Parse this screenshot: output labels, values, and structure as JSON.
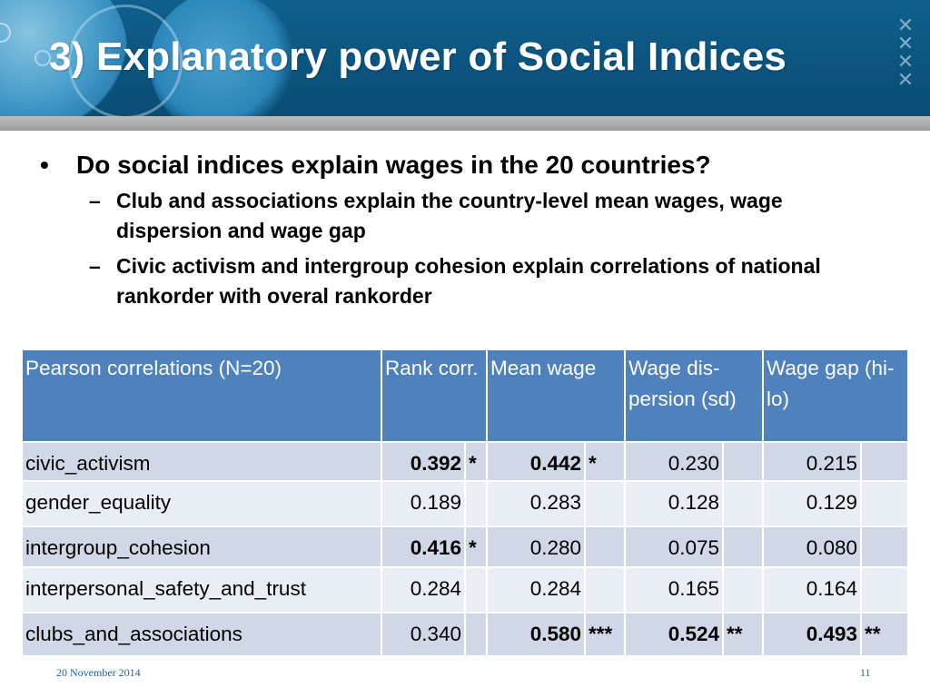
{
  "slide": {
    "title": "3) Explanatory power of Social Indices",
    "bullets": [
      {
        "text": "Do social indices explain wages in the 20 countries?",
        "sub": [
          "Club and associations explain the country-level mean wages, wage dispersion and wage gap",
          "Civic activism and intergroup cohesion explain correlations of national rankorder with overal rankorder"
        ]
      }
    ],
    "table": {
      "headers": [
        "Pearson correlations (N=20)",
        "Rank corr.",
        "Mean wage",
        "Wage dis-persion (sd)",
        "Wage gap (hi-lo)"
      ],
      "rows": [
        {
          "label": "civic_activism",
          "rank": "0.392",
          "rank_sig": "*",
          "mean": "0.442",
          "mean_sig": "*",
          "disp": "0.230",
          "disp_sig": "",
          "gap": "0.215",
          "gap_sig": ""
        },
        {
          "label": "gender_equality",
          "rank": "0.189",
          "rank_sig": "",
          "mean": "0.283",
          "mean_sig": "",
          "disp": "0.128",
          "disp_sig": "",
          "gap": "0.129",
          "gap_sig": ""
        },
        {
          "label": "intergroup_cohesion",
          "rank": "0.416",
          "rank_sig": "*",
          "mean": "0.280",
          "mean_sig": "",
          "disp": "0.075",
          "disp_sig": "",
          "gap": "0.080",
          "gap_sig": ""
        },
        {
          "label": "interpersonal_safety_and_trust",
          "rank": "0.284",
          "rank_sig": "",
          "mean": "0.284",
          "mean_sig": "",
          "disp": "0.165",
          "disp_sig": "",
          "gap": "0.164",
          "gap_sig": ""
        },
        {
          "label": "clubs_and_associations",
          "rank": "0.340",
          "rank_sig": "",
          "mean": "0.580",
          "mean_sig": "***",
          "disp": "0.524",
          "disp_sig": "**",
          "gap": "0.493",
          "gap_sig": "**"
        }
      ]
    },
    "footer": {
      "date": "20 November 2014",
      "page": "11"
    }
  },
  "colors": {
    "header_blue": "#0b557f",
    "table_header": "#4f81bd",
    "row_odd": "#d0d8e8",
    "row_even": "#e9edf4",
    "footer_text": "#1f5f99"
  }
}
